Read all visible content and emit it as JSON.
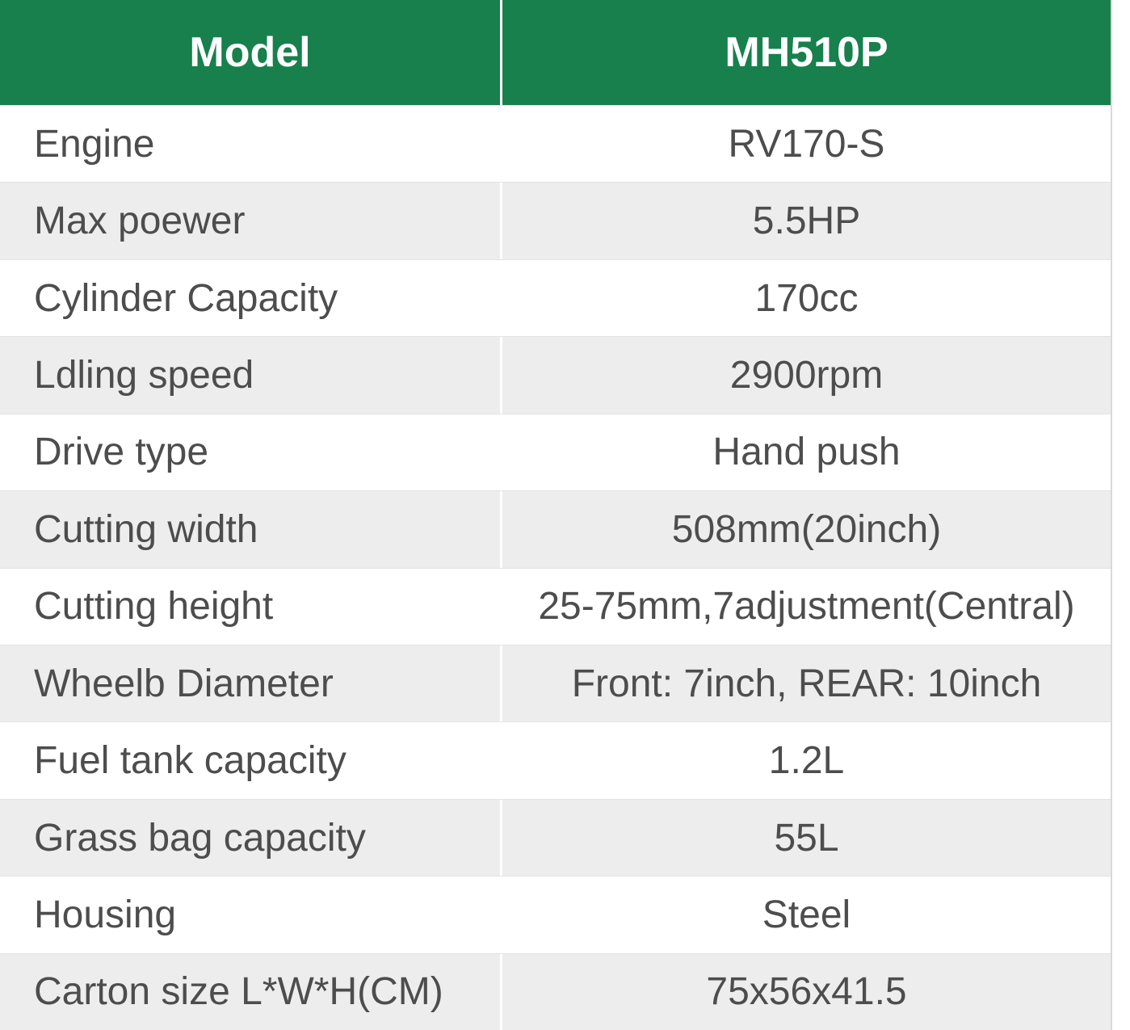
{
  "table": {
    "header": {
      "model_label": "Model",
      "model_value": "MH510P"
    },
    "rows": [
      {
        "label": "Engine",
        "value": "RV170-S"
      },
      {
        "label": "Max poewer",
        "value": "5.5HP"
      },
      {
        "label": "Cylinder Capacity",
        "value": "170cc"
      },
      {
        "label": "Ldling speed",
        "value": "2900rpm"
      },
      {
        "label": "Drive type",
        "value": "Hand push"
      },
      {
        "label": "Cutting width",
        "value": "508mm(20inch)"
      },
      {
        "label": "Cutting height",
        "value": "25-75mm,7adjustment(Central)"
      },
      {
        "label": "Wheelb Diameter",
        "value": "Front: 7inch, REAR: 10inch"
      },
      {
        "label": "Fuel tank capacity",
        "value": "1.2L"
      },
      {
        "label": "Grass bag capacity",
        "value": "55L"
      },
      {
        "label": "Housing",
        "value": "Steel"
      },
      {
        "label": "Carton size L*W*H(CM)",
        "value": "75x56x41.5"
      }
    ],
    "colors": {
      "header_bg": "#17804C",
      "header_text": "#FFFFFF",
      "row_bg": "#FFFFFF",
      "row_alt_bg": "#EDEDED",
      "row_text": "#4D4D4D",
      "divider": "#FFFFFF",
      "table_border": "#D9D9D9"
    }
  },
  "chart_data": {
    "type": "table",
    "columns": [
      "Model",
      "MH510P"
    ],
    "rows": [
      [
        "Engine",
        "RV170-S"
      ],
      [
        "Max poewer",
        "5.5HP"
      ],
      [
        "Cylinder Capacity",
        "170cc"
      ],
      [
        "Ldling speed",
        "2900rpm"
      ],
      [
        "Drive type",
        "Hand push"
      ],
      [
        "Cutting width",
        "508mm(20inch)"
      ],
      [
        "Cutting height",
        "25-75mm,7adjustment(Central)"
      ],
      [
        "Wheelb Diameter",
        "Front: 7inch, REAR: 10inch"
      ],
      [
        "Fuel tank capacity",
        "1.2L"
      ],
      [
        "Grass bag capacity",
        "55L"
      ],
      [
        "Housing",
        "Steel"
      ],
      [
        "Carton size L*W*H(CM)",
        "75x56x41.5"
      ]
    ],
    "layout": {
      "header_fill": "#17804C",
      "alternating_row_fill": "#EDEDED",
      "label_align": "left",
      "value_align": "center"
    }
  }
}
